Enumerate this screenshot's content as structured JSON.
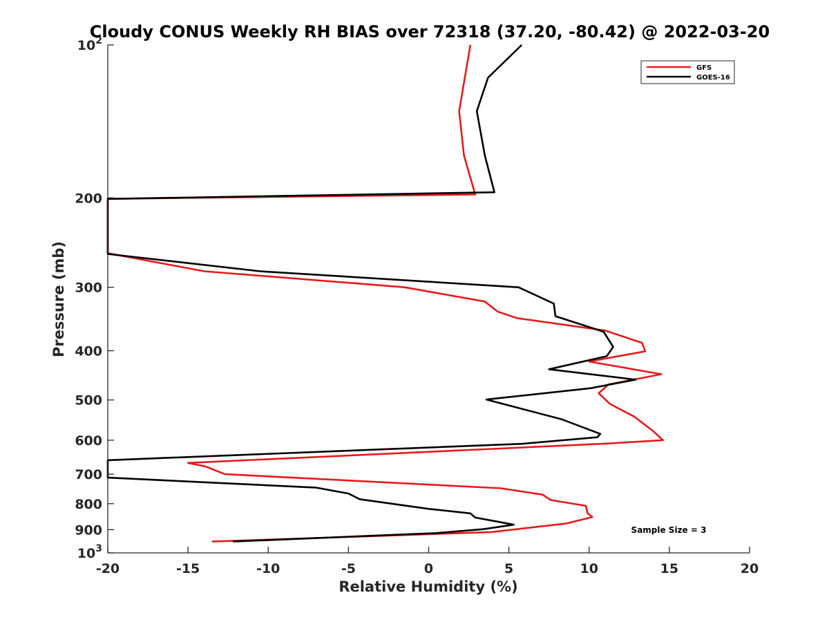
{
  "chart_data": {
    "type": "line",
    "title": "Cloudy CONUS Weekly RH BIAS over 72318 (37.20, -80.42) @ 2022-03-20",
    "xlabel": "Relative Humidity (%)",
    "ylabel": "Pressure (mb)",
    "xlim": [
      -20,
      20
    ],
    "ylim": [
      100,
      1000
    ],
    "yscale": "log",
    "y_reversed": true,
    "grid": false,
    "legend_position": "top-right",
    "x_ticks": [
      -20,
      -15,
      -10,
      -5,
      0,
      5,
      10,
      15,
      20
    ],
    "x_tick_labels": [
      "-20",
      "-15",
      "-10",
      "-5",
      "0",
      "5",
      "10",
      "15",
      "20"
    ],
    "y_ticks": [
      {
        "value": 100,
        "base": "10",
        "exp": "2"
      },
      {
        "value": 200,
        "label": "200"
      },
      {
        "value": 300,
        "label": "300"
      },
      {
        "value": 400,
        "label": "400"
      },
      {
        "value": 500,
        "label": "500"
      },
      {
        "value": 600,
        "label": "600"
      },
      {
        "value": 700,
        "label": "700"
      },
      {
        "value": 800,
        "label": "800"
      },
      {
        "value": 900,
        "label": "900"
      },
      {
        "value": 1000,
        "base": "10",
        "exp": "3"
      }
    ],
    "series": [
      {
        "name": "GFS",
        "color": "#e41a1c",
        "points": [
          {
            "x": 2.6,
            "p": 100
          },
          {
            "x": 1.9,
            "p": 135
          },
          {
            "x": 2.2,
            "p": 165
          },
          {
            "x": 2.9,
            "p": 197
          },
          {
            "x": -20.0,
            "p": 201
          },
          {
            "x": -20.0,
            "p": 257
          },
          {
            "x": -14.0,
            "p": 279
          },
          {
            "x": -1.5,
            "p": 300
          },
          {
            "x": 3.5,
            "p": 320
          },
          {
            "x": 4.3,
            "p": 335
          },
          {
            "x": 5.5,
            "p": 345
          },
          {
            "x": 11.0,
            "p": 365
          },
          {
            "x": 13.3,
            "p": 386
          },
          {
            "x": 13.5,
            "p": 401
          },
          {
            "x": 10.0,
            "p": 420
          },
          {
            "x": 14.5,
            "p": 445
          },
          {
            "x": 11.2,
            "p": 466
          },
          {
            "x": 10.6,
            "p": 485
          },
          {
            "x": 11.3,
            "p": 509
          },
          {
            "x": 12.8,
            "p": 539
          },
          {
            "x": 14.0,
            "p": 576
          },
          {
            "x": 14.6,
            "p": 600
          },
          {
            "x": 11.2,
            "p": 609
          },
          {
            "x": 4.0,
            "p": 624
          },
          {
            "x": -15.0,
            "p": 665
          },
          {
            "x": -13.9,
            "p": 676
          },
          {
            "x": -12.7,
            "p": 700
          },
          {
            "x": 4.5,
            "p": 746
          },
          {
            "x": 7.1,
            "p": 768
          },
          {
            "x": 7.6,
            "p": 787
          },
          {
            "x": 9.8,
            "p": 808
          },
          {
            "x": 9.9,
            "p": 835
          },
          {
            "x": 10.2,
            "p": 850
          },
          {
            "x": 8.6,
            "p": 875
          },
          {
            "x": 3.9,
            "p": 910
          },
          {
            "x": -13.5,
            "p": 950
          }
        ]
      },
      {
        "name": "GOES-16",
        "color": "#000000",
        "points": [
          {
            "x": 5.8,
            "p": 100
          },
          {
            "x": 3.7,
            "p": 116
          },
          {
            "x": 3.0,
            "p": 135
          },
          {
            "x": 3.5,
            "p": 165
          },
          {
            "x": 4.1,
            "p": 195
          },
          {
            "x": -20.0,
            "p": 201
          },
          {
            "x": -20.0,
            "p": 258
          },
          {
            "x": -10.5,
            "p": 279
          },
          {
            "x": 5.6,
            "p": 300
          },
          {
            "x": 7.8,
            "p": 323
          },
          {
            "x": 7.9,
            "p": 342
          },
          {
            "x": 10.9,
            "p": 367
          },
          {
            "x": 11.5,
            "p": 393
          },
          {
            "x": 11.1,
            "p": 410
          },
          {
            "x": 7.5,
            "p": 435
          },
          {
            "x": 12.9,
            "p": 456
          },
          {
            "x": 10.1,
            "p": 474
          },
          {
            "x": 3.6,
            "p": 499
          },
          {
            "x": 8.3,
            "p": 546
          },
          {
            "x": 10.7,
            "p": 583
          },
          {
            "x": 10.5,
            "p": 592
          },
          {
            "x": 5.8,
            "p": 610
          },
          {
            "x": -20.0,
            "p": 657
          },
          {
            "x": -20.0,
            "p": 711
          },
          {
            "x": -7.0,
            "p": 744
          },
          {
            "x": -5.0,
            "p": 764
          },
          {
            "x": -4.3,
            "p": 784
          },
          {
            "x": 0.0,
            "p": 819
          },
          {
            "x": 2.6,
            "p": 836
          },
          {
            "x": 2.9,
            "p": 852
          },
          {
            "x": 4.3,
            "p": 868
          },
          {
            "x": 5.3,
            "p": 880
          },
          {
            "x": 3.4,
            "p": 898
          },
          {
            "x": 0.5,
            "p": 914
          },
          {
            "x": -12.2,
            "p": 950
          }
        ]
      }
    ],
    "annotation": "Sample Size = 3"
  }
}
